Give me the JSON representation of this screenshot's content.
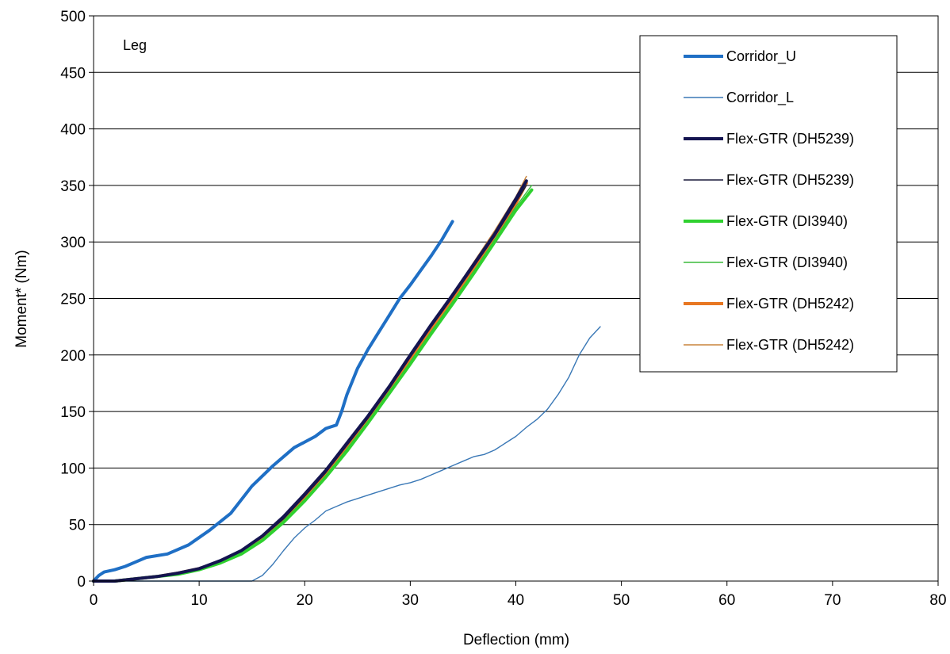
{
  "chart_data": {
    "type": "line",
    "title": "",
    "xlabel": "Deflection (mm)",
    "ylabel": "Moment* (Nm)",
    "xlim": [
      0,
      80
    ],
    "ylim": [
      0,
      500
    ],
    "xticks": [
      0,
      10,
      20,
      30,
      40,
      50,
      60,
      70,
      80
    ],
    "yticks": [
      0,
      50,
      100,
      150,
      200,
      250,
      300,
      350,
      400,
      450,
      500
    ],
    "grid": "horizontal",
    "legend_position": "top-right",
    "annotations": [
      "Leg"
    ],
    "series": [
      {
        "name": "Corridor_U",
        "color": "#1f6fc5",
        "weight": "thick",
        "x": [
          0,
          0.5,
          1,
          2,
          3,
          4,
          5,
          7,
          9,
          11,
          13,
          15,
          17,
          19,
          21,
          22,
          23,
          23.5,
          24,
          25,
          26,
          27,
          28,
          29,
          30,
          31,
          32,
          33,
          34
        ],
        "y": [
          0,
          5,
          8,
          10,
          13,
          17,
          21,
          24,
          32,
          45,
          60,
          84,
          102,
          118,
          128,
          135,
          138,
          150,
          165,
          188,
          205,
          220,
          235,
          250,
          262,
          275,
          288,
          302,
          318
        ]
      },
      {
        "name": "Corridor_L",
        "color": "#3a78b6",
        "weight": "thin",
        "x": [
          0,
          10,
          15,
          16,
          17,
          18,
          19,
          20,
          21,
          22,
          23,
          24,
          25,
          26,
          27,
          28,
          29,
          30,
          31,
          32,
          33,
          34,
          35,
          36,
          37,
          38,
          39,
          40,
          41,
          42,
          43,
          44,
          45,
          46,
          47,
          48
        ],
        "y": [
          0,
          0,
          0,
          5,
          15,
          27,
          38,
          47,
          54,
          62,
          66,
          70,
          73,
          76,
          79,
          82,
          85,
          87,
          90,
          94,
          98,
          102,
          106,
          110,
          112,
          116,
          122,
          128,
          136,
          143,
          152,
          165,
          180,
          200,
          215,
          225
        ]
      },
      {
        "name": "Flex-GTR (DH5239)",
        "color": "#141450",
        "weight": "thick",
        "x": [
          0,
          2,
          4,
          6,
          8,
          10,
          12,
          14,
          16,
          18,
          20,
          22,
          24,
          26,
          28,
          30,
          32,
          34,
          36,
          38,
          40,
          41
        ],
        "y": [
          0,
          0,
          2,
          4,
          7,
          11,
          18,
          27,
          40,
          57,
          77,
          98,
          122,
          146,
          172,
          200,
          227,
          253,
          280,
          307,
          338,
          354
        ]
      },
      {
        "name": "Flex-GTR (DH5239)",
        "color": "#1a1a3a",
        "weight": "thin",
        "x": [
          0,
          2,
          4,
          6,
          8,
          10,
          12,
          14,
          16,
          18,
          20,
          22,
          24,
          26,
          28,
          30,
          32,
          34,
          36,
          38,
          40,
          41
        ],
        "y": [
          0,
          0,
          2,
          4,
          7,
          11,
          18,
          26,
          39,
          55,
          75,
          96,
          120,
          144,
          170,
          198,
          225,
          251,
          278,
          305,
          335,
          350
        ]
      },
      {
        "name": "Flex-GTR (DI3940)",
        "color": "#2fd12f",
        "weight": "thick",
        "x": [
          0,
          2,
          4,
          6,
          8,
          10,
          12,
          14,
          16,
          18,
          20,
          22,
          24,
          26,
          28,
          30,
          32,
          34,
          36,
          38,
          40,
          41.5
        ],
        "y": [
          0,
          0,
          2,
          4,
          6,
          10,
          16,
          24,
          36,
          52,
          71,
          92,
          115,
          140,
          166,
          192,
          219,
          245,
          272,
          300,
          328,
          346
        ]
      },
      {
        "name": "Flex-GTR (DI3940)",
        "color": "#3bbb3b",
        "weight": "thin",
        "x": [
          0,
          2,
          4,
          6,
          8,
          10,
          12,
          14,
          16,
          18,
          20,
          22,
          24,
          26,
          28,
          30,
          32,
          34,
          36,
          38,
          40,
          41.5
        ],
        "y": [
          0,
          0,
          2,
          4,
          7,
          10,
          17,
          25,
          37,
          53,
          72,
          93,
          117,
          141,
          167,
          194,
          221,
          247,
          274,
          302,
          331,
          350
        ]
      },
      {
        "name": "Flex-GTR (DH5242)",
        "color": "#e87722",
        "weight": "thick",
        "x": [
          0,
          2,
          4,
          6,
          8,
          10,
          12,
          14,
          16,
          18,
          20,
          22,
          24,
          26,
          28,
          30,
          32,
          34,
          36,
          38,
          40,
          41
        ],
        "y": [
          0,
          0,
          2,
          4,
          7,
          11,
          17,
          25,
          38,
          54,
          73,
          95,
          118,
          143,
          169,
          196,
          224,
          250,
          277,
          305,
          334,
          352
        ]
      },
      {
        "name": "Flex-GTR (DH5242)",
        "color": "#c8843c",
        "weight": "thin",
        "x": [
          0,
          2,
          4,
          6,
          8,
          10,
          12,
          14,
          16,
          18,
          20,
          22,
          24,
          26,
          28,
          30,
          32,
          34,
          36,
          38,
          40,
          41
        ],
        "y": [
          0,
          0,
          2,
          4,
          7,
          11,
          18,
          26,
          39,
          56,
          76,
          97,
          121,
          146,
          172,
          200,
          228,
          254,
          282,
          310,
          340,
          358
        ]
      }
    ]
  }
}
